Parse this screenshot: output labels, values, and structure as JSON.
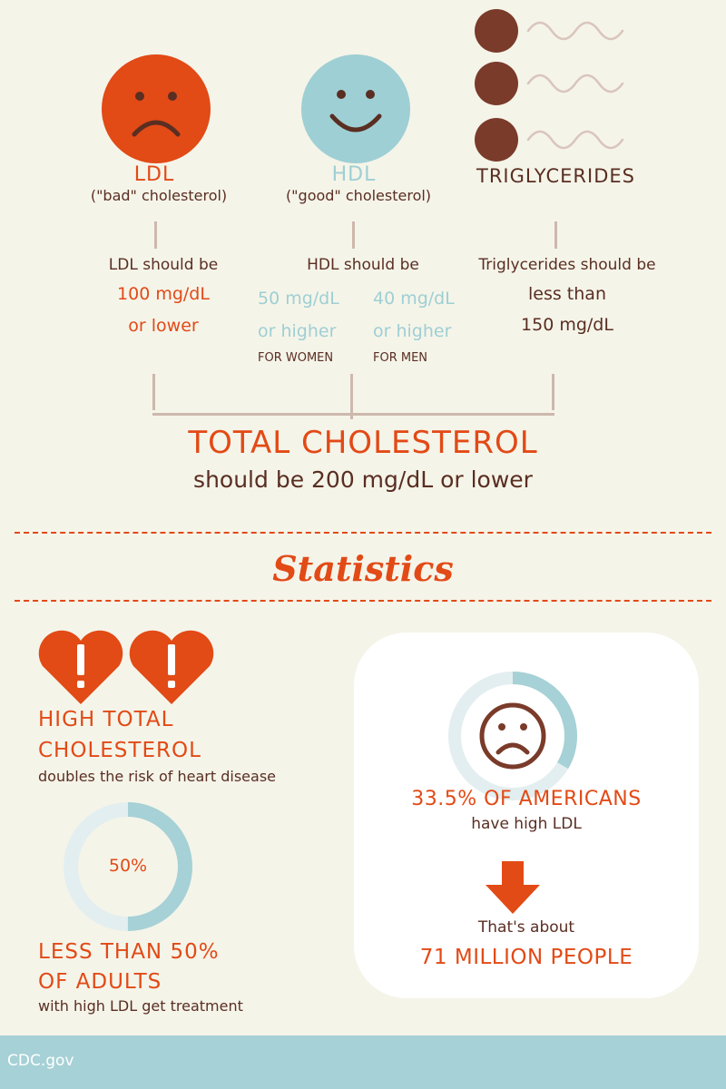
{
  "colors": {
    "background": "#f5f4e9",
    "ldl_orange": "#e24a16",
    "hdl_teal": "#9ecfd4",
    "trig_brown": "#7a3b2a",
    "text_brown": "#5a2e22",
    "footer_teal": "#a6d1d6"
  },
  "icons": {
    "ldl": "sad-face-icon",
    "hdl": "happy-face-icon",
    "triglycerides": "triglyceride-molecule-icon",
    "heart": "heart-exclamation-icon",
    "americans": "sad-face-icon",
    "arrow": "arrow-down-icon"
  },
  "ldl": {
    "title": "LDL",
    "subtitle": "(\"bad\" cholesterol)",
    "lead": "LDL should be",
    "value": "100 mg/dL",
    "qualifier": "or lower"
  },
  "hdl": {
    "title": "HDL",
    "subtitle": "(\"good\" cholesterol)",
    "lead": "HDL should be",
    "women": {
      "value": "50 mg/dL",
      "qualifier": "or higher",
      "label": "FOR WOMEN"
    },
    "men": {
      "value": "40 mg/dL",
      "qualifier": "or higher",
      "label": "FOR MEN"
    }
  },
  "triglycerides": {
    "title": "TRIGLYCERIDES",
    "lead": "Triglycerides should be",
    "qualifier": "less than",
    "value": "150 mg/dL"
  },
  "total": {
    "title": "TOTAL CHOLESTEROL",
    "subtitle": "should be 200 mg/dL or lower"
  },
  "statistics": {
    "heading": "Statistics",
    "high_total": {
      "line1": "HIGH TOTAL",
      "line2": "CHOLESTEROL",
      "detail": "doubles the risk of heart disease"
    },
    "treatment": {
      "ring_label": "50%",
      "ring_fraction": 0.5,
      "line1": "LESS THAN 50%",
      "line2": "OF ADULTS",
      "detail": "with high LDL get treatment"
    },
    "americans": {
      "ring_fraction": 0.335,
      "headline": "33.5% OF AMERICANS",
      "detail": "have high LDL",
      "lead": "That's about",
      "people": "71 MILLION PEOPLE"
    }
  },
  "footer": {
    "source": "CDC.gov"
  }
}
